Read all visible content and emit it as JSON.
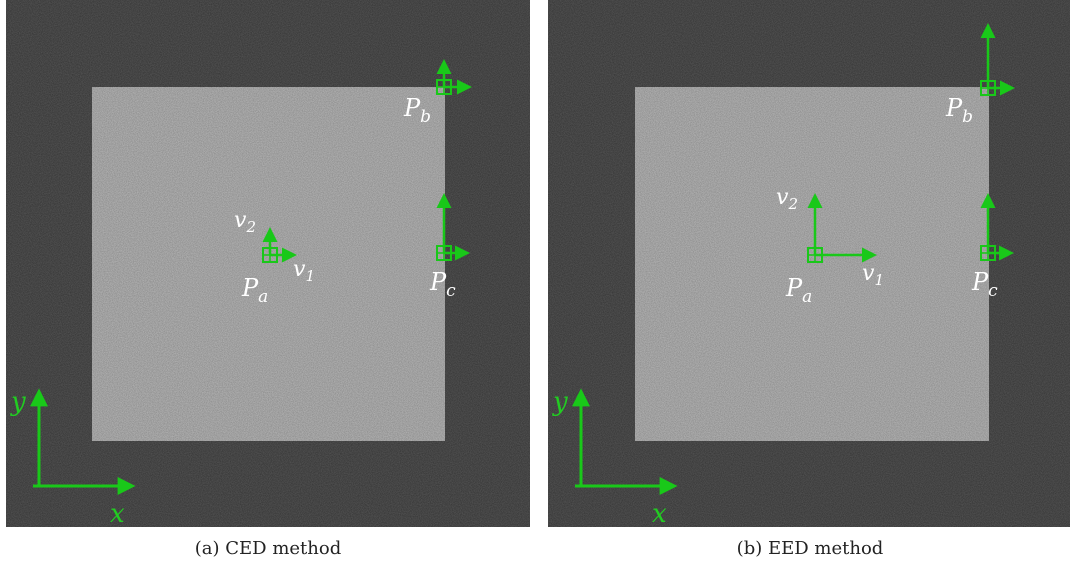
{
  "colors": {
    "marker": "#19c819",
    "background_noise": "#3a3a3a",
    "square_noise": "#8e8e8e"
  },
  "panels": [
    {
      "caption": "(a) CED method",
      "labels": {
        "pa": "P",
        "pa_sub": "a",
        "pb": "P",
        "pb_sub": "b",
        "pc": "P",
        "pc_sub": "c",
        "v1": "v",
        "v1_sub": "1",
        "v2": "v",
        "v2_sub": "2",
        "x": "x",
        "y": "y"
      }
    },
    {
      "caption": "(b) EED method",
      "labels": {
        "pa": "P",
        "pa_sub": "a",
        "pb": "P",
        "pb_sub": "b",
        "pc": "P",
        "pc_sub": "c",
        "v1": "v",
        "v1_sub": "1",
        "v2": "v",
        "v2_sub": "2",
        "x": "x",
        "y": "y"
      }
    }
  ]
}
